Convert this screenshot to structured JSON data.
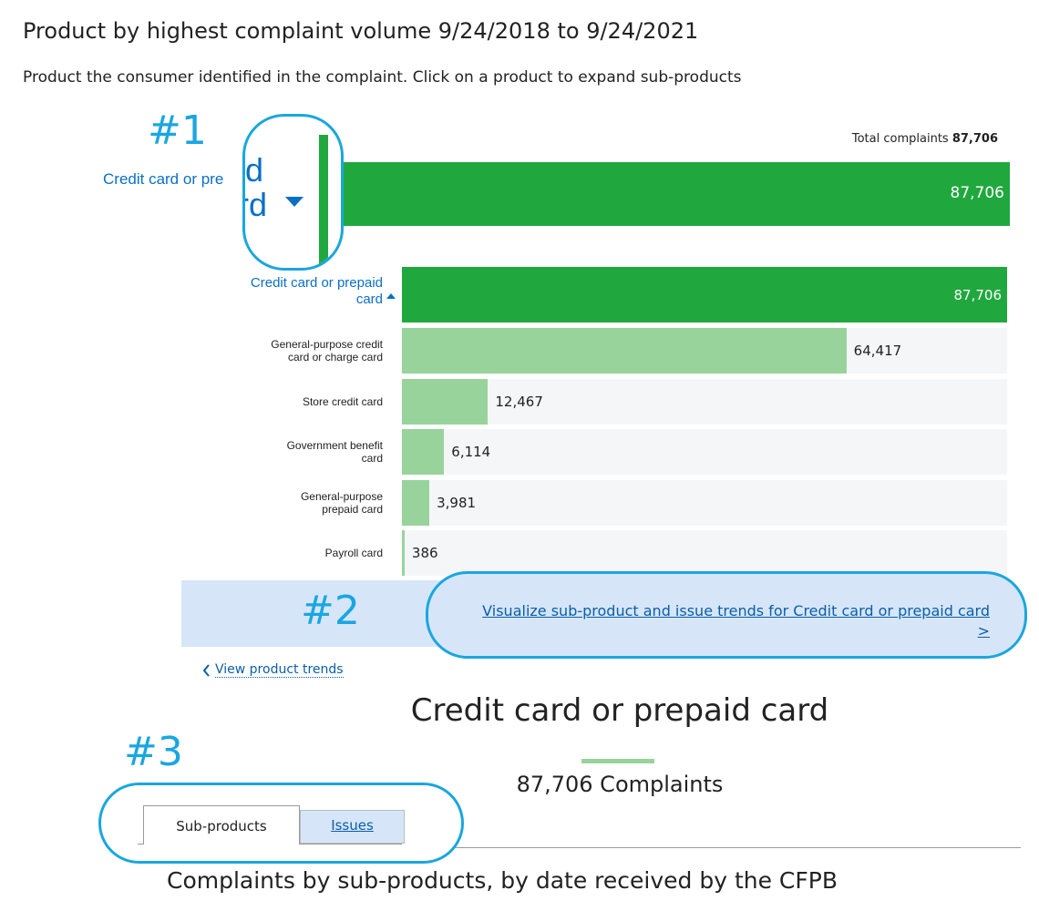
{
  "header": {
    "title": "Product by highest complaint volume 9/24/2018 to 9/24/2021",
    "subtitle": "Product the consumer identified in the complaint. Click on a product to expand sub-products"
  },
  "callouts": [
    "#1",
    "#2",
    "#3"
  ],
  "total": {
    "label": "Total complaints",
    "value": "87,706"
  },
  "zoom_bar": {
    "label": "Credit card or pre",
    "magnified": [
      "id",
      "rd"
    ],
    "value": 87706,
    "value_label": "87,706",
    "color": "#20a83e"
  },
  "chart_data": {
    "type": "bar",
    "orientation": "horizontal",
    "parent": {
      "name": "Credit card or prepaid\ncard",
      "value": 87706,
      "value_label": "87,706",
      "color": "#20a83e"
    },
    "categories": [
      "General-purpose credit\ncard or charge card",
      "Store credit card",
      "Government benefit\ncard",
      "General-purpose\nprepaid card",
      "Payroll card"
    ],
    "values": [
      64417,
      12467,
      6114,
      3981,
      386
    ],
    "value_labels": [
      "64,417",
      "12,467",
      "6,114",
      "3,981",
      "386"
    ],
    "color": "#98d39c"
  },
  "trend_link": {
    "text": "Visualize sub-product and issue trends for Credit card or prepaid card",
    "arrow": ">"
  },
  "back_link": "View product trends",
  "detail": {
    "title": "Credit card or prepaid card",
    "count": "87,706 Complaints"
  },
  "tabs": [
    "Sub-products",
    "Issues"
  ],
  "section_title": "Complaints by sub-products, by date received by the CFPB"
}
